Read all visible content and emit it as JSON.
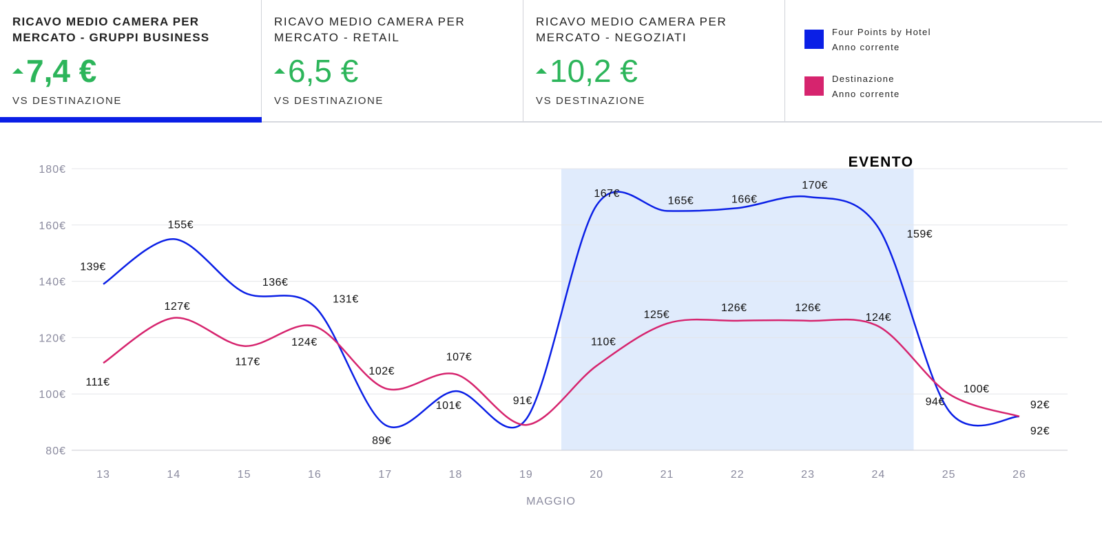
{
  "kpis": [
    {
      "title": "RICAVO MEDIO CAMERA PER MERCATO - GRUPPI BUSINESS",
      "value": "7,4 €",
      "sub": "VS DESTINAZIONE",
      "trend": "up"
    },
    {
      "title": "RICAVO MEDIO CAMERA PER MERCATO - RETAIL",
      "value": "6,5 €",
      "sub": "VS DESTINAZIONE",
      "trend": "up"
    },
    {
      "title": "RICAVO MEDIO CAMERA PER MERCATO - NEGOZIATI",
      "value": "10,2 €",
      "sub": "VS DESTINAZIONE",
      "trend": "up"
    }
  ],
  "legend": [
    {
      "name": "Four Points by Hotel",
      "sub": "Anno corrente",
      "color": "#0a1fe6"
    },
    {
      "name": "Destinazione",
      "sub": "Anno corrente",
      "color": "#d6246e"
    }
  ],
  "chart_data": {
    "type": "line",
    "x": [
      13,
      14,
      15,
      16,
      17,
      18,
      19,
      20,
      21,
      22,
      23,
      24,
      25,
      26
    ],
    "xlabel": "MAGGIO",
    "ylim": [
      80,
      180
    ],
    "yticks": [
      "80€",
      "100€",
      "120€",
      "140€",
      "160€",
      "180€"
    ],
    "ytick_values": [
      80,
      100,
      120,
      140,
      160,
      180
    ],
    "grid": true,
    "highlight": {
      "from": 19.5,
      "to": 24.5,
      "label": "EVENTO",
      "color": "#e0ebfc"
    },
    "series": [
      {
        "name": "Four Points by Hotel - Anno corrente",
        "color": "#0a1fe6",
        "values": [
          139,
          155,
          136,
          131,
          89,
          101,
          91,
          167,
          165,
          166,
          170,
          159,
          94,
          92
        ],
        "labels": [
          "139€",
          "155€",
          "136€",
          "131€",
          "89€",
          "101€",
          "91€",
          "167€",
          "165€",
          "166€",
          "170€",
          "159€",
          "94€",
          "92€"
        ]
      },
      {
        "name": "Destinazione - Anno corrente",
        "color": "#d6246e",
        "values": [
          111,
          127,
          117,
          124,
          102,
          107,
          89,
          110,
          125,
          126,
          126,
          124,
          100,
          92
        ],
        "labels": [
          "111€",
          "127€",
          "117€",
          "124€",
          "102€",
          "107€",
          null,
          "110€",
          "125€",
          "126€",
          "126€",
          "124€",
          "100€",
          "92€"
        ]
      }
    ]
  }
}
